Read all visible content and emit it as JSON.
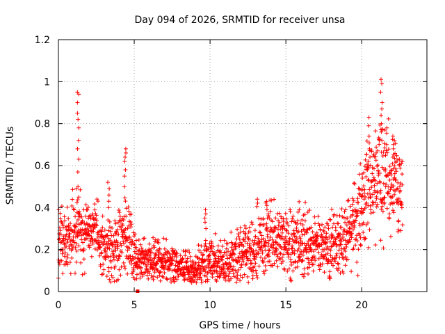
{
  "chart_data": {
    "type": "scatter",
    "title": "Day 094 of 2026, SRMTID for receiver unsa",
    "xlabel": "GPS time / hours",
    "ylabel": "SRMTID / TECUs",
    "xlim": [
      0,
      24.3
    ],
    "ylim": [
      0,
      1.2
    ],
    "xticks": [
      0,
      5,
      10,
      15,
      20
    ],
    "xtick_labels": [
      "0",
      "5",
      "10",
      "15",
      "20"
    ],
    "yticks": [
      0,
      0.2,
      0.4,
      0.6,
      0.8,
      1.0,
      1.2
    ],
    "ytick_labels": [
      "0",
      "0.2",
      "0.4",
      "0.6",
      "0.8",
      "1",
      "1.2"
    ],
    "grid": true,
    "marker": "+",
    "series_color": "#ff0000",
    "series": [
      {
        "name": "SRMTID",
        "profile_x": [
          0.0,
          0.5,
          1.0,
          1.5,
          2.0,
          2.5,
          3.0,
          3.5,
          4.0,
          4.5,
          5.0,
          5.5,
          6.0,
          6.5,
          7.0,
          7.5,
          8.0,
          8.5,
          9.0,
          9.5,
          10.0,
          10.5,
          11.0,
          11.5,
          12.0,
          12.5,
          13.0,
          13.5,
          14.0,
          14.5,
          15.0,
          15.5,
          16.0,
          16.5,
          17.0,
          17.5,
          18.0,
          18.5,
          19.0,
          19.5,
          20.0,
          20.5,
          21.0,
          21.5,
          22.0,
          22.5
        ],
        "profile_mean": [
          0.26,
          0.24,
          0.25,
          0.27,
          0.31,
          0.3,
          0.2,
          0.21,
          0.24,
          0.27,
          0.2,
          0.15,
          0.15,
          0.14,
          0.13,
          0.13,
          0.12,
          0.11,
          0.11,
          0.13,
          0.16,
          0.14,
          0.13,
          0.16,
          0.18,
          0.2,
          0.22,
          0.23,
          0.24,
          0.25,
          0.25,
          0.24,
          0.24,
          0.22,
          0.23,
          0.22,
          0.22,
          0.23,
          0.27,
          0.33,
          0.45,
          0.5,
          0.52,
          0.55,
          0.52,
          0.5
        ],
        "profile_spread": [
          0.08,
          0.07,
          0.08,
          0.08,
          0.07,
          0.06,
          0.06,
          0.07,
          0.08,
          0.09,
          0.07,
          0.06,
          0.05,
          0.05,
          0.05,
          0.05,
          0.04,
          0.04,
          0.04,
          0.05,
          0.05,
          0.05,
          0.05,
          0.06,
          0.07,
          0.07,
          0.08,
          0.08,
          0.08,
          0.08,
          0.08,
          0.08,
          0.08,
          0.07,
          0.07,
          0.07,
          0.07,
          0.07,
          0.08,
          0.1,
          0.12,
          0.12,
          0.12,
          0.12,
          0.1,
          0.1
        ],
        "points_per_hour": 90,
        "x_range": [
          0.0,
          22.7
        ],
        "spikes": [
          {
            "x": 1.3,
            "y": [
              0.95,
              0.94,
              0.9,
              0.85,
              0.82,
              0.78,
              0.72,
              0.68,
              0.63,
              0.57,
              0.5,
              0.45
            ]
          },
          {
            "x": 3.3,
            "y": [
              0.52,
              0.49,
              0.46,
              0.43,
              0.4
            ]
          },
          {
            "x": 4.4,
            "y": [
              0.68,
              0.66,
              0.64,
              0.62,
              0.58,
              0.55,
              0.5
            ]
          },
          {
            "x": 9.7,
            "y": [
              0.39,
              0.37,
              0.35,
              0.33,
              0.3
            ]
          },
          {
            "x": 13.8,
            "y": [
              0.41,
              0.39,
              0.37,
              0.35
            ]
          },
          {
            "x": 20.5,
            "y": [
              0.83,
              0.79,
              0.74,
              0.68,
              0.62
            ]
          },
          {
            "x": 21.3,
            "y": [
              1.01,
              0.99,
              0.95,
              0.9,
              0.87,
              0.84,
              0.8,
              0.76,
              0.72
            ]
          },
          {
            "x": 22.1,
            "y": [
              0.74,
              0.72,
              0.7,
              0.68,
              0.64,
              0.6
            ]
          }
        ],
        "outliers": [
          {
            "x": 5.2,
            "y": 0.0
          }
        ]
      }
    ]
  }
}
